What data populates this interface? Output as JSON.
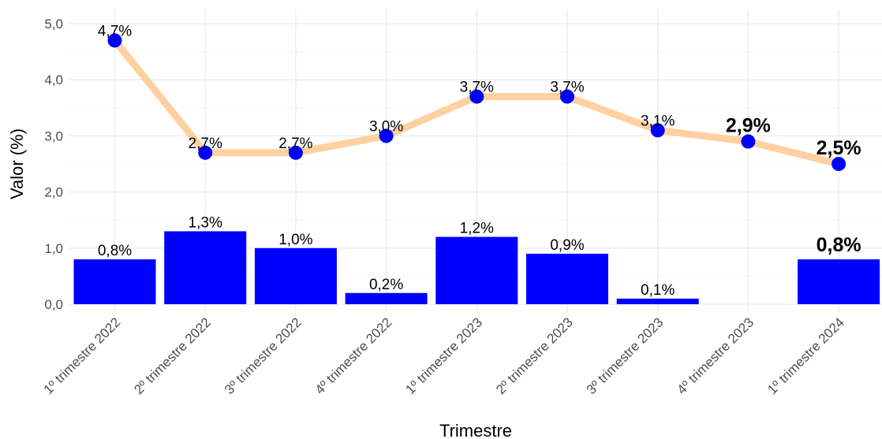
{
  "chart_data": {
    "type": "bar+line",
    "xlabel": "Trimestre",
    "ylabel": "Valor (%)",
    "ylim": [
      0,
      5
    ],
    "yticks": [
      "0,0",
      "1,0",
      "2,0",
      "3,0",
      "4,0",
      "5,0"
    ],
    "grid": true,
    "categories": [
      "1º trimestre 2022",
      "2º trimestre 2022",
      "3º trimestre 2022",
      "4º trimestre 2022",
      "1º trimestre 2023",
      "2º trimestre 2023",
      "3º trimestre 2023",
      "4º trimestre 2023",
      "1º trimestre 2024"
    ],
    "bars": {
      "color": "#0000ff",
      "values": [
        0.8,
        1.3,
        1.0,
        0.2,
        1.2,
        0.9,
        0.1,
        null,
        0.8
      ],
      "labels": [
        "0,8%",
        "1,3%",
        "1,0%",
        "0,2%",
        "1,2%",
        "0,9%",
        "0,1%",
        "",
        "0,8%"
      ],
      "bold": [
        false,
        false,
        false,
        false,
        false,
        false,
        false,
        false,
        true
      ]
    },
    "line": {
      "line_color": "#ffd0a0",
      "point_color": "#0000ff",
      "values": [
        4.7,
        2.7,
        2.7,
        3.0,
        3.7,
        3.7,
        3.1,
        2.9,
        2.5
      ],
      "labels": [
        "4,7%",
        "2,7%",
        "2,7%",
        "3,0%",
        "3,7%",
        "3,7%",
        "3,1%",
        "2,9%",
        "2,5%"
      ],
      "bold": [
        false,
        false,
        false,
        false,
        false,
        false,
        false,
        true,
        true
      ]
    }
  }
}
